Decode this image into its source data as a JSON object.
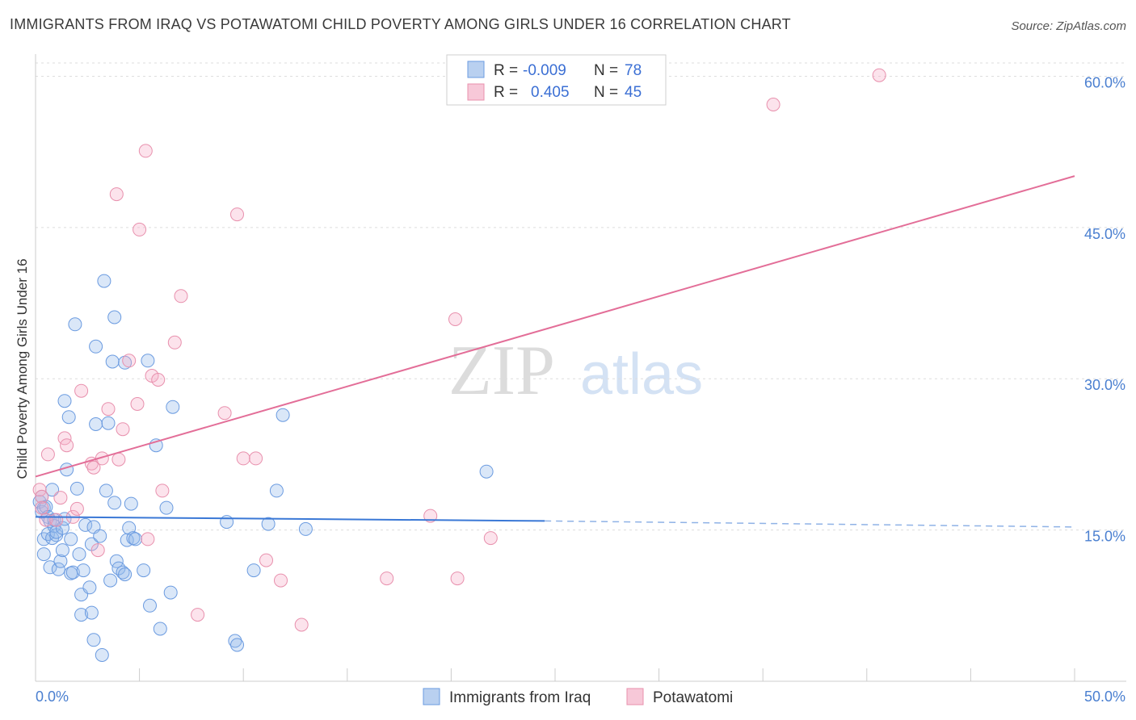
{
  "header": {
    "title": "IMMIGRANTS FROM IRAQ VS POTAWATOMI CHILD POVERTY AMONG GIRLS UNDER 16 CORRELATION CHART",
    "source": "Source: ZipAtlas.com"
  },
  "watermark": {
    "zip": "ZIP",
    "atlas": "atlas"
  },
  "legend_top": {
    "rows": [
      {
        "r_label": "R =",
        "r_value": "-0.009",
        "n_label": "N =",
        "n_value": "78",
        "color": "#6b9be0"
      },
      {
        "r_label": "R =",
        "r_value": "0.405",
        "n_label": "N =",
        "n_value": "45",
        "color": "#e890ad"
      }
    ]
  },
  "legend_bottom": {
    "items": [
      {
        "label": "Immigrants from Iraq",
        "color": "#6b9be0"
      },
      {
        "label": "Potawatomi",
        "color": "#e890ad"
      }
    ]
  },
  "chart_data": {
    "type": "scatter",
    "title": "IMMIGRANTS FROM IRAQ VS POTAWATOMI CHILD POVERTY AMONG GIRLS UNDER 16 CORRELATION CHART",
    "xlabel": "",
    "ylabel": "Child Poverty Among Girls Under 16",
    "xlim": [
      0,
      50
    ],
    "ylim": [
      0,
      63
    ],
    "x_tick_labels": [
      "0.0%",
      "50.0%"
    ],
    "y_ticks": [
      15,
      30,
      45,
      60
    ],
    "y_tick_labels": [
      "15.0%",
      "30.0%",
      "45.0%",
      "60.0%"
    ],
    "grid": true,
    "series": [
      {
        "name": "Immigrants from Iraq",
        "color": "#6b9be0",
        "trend": {
          "x": [
            0,
            24.5
          ],
          "y": [
            16.3,
            15.9
          ],
          "dashed_to": [
            50,
            15.3
          ]
        },
        "points": [
          [
            0.2,
            17.8
          ],
          [
            0.3,
            18.3
          ],
          [
            0.3,
            16.8
          ],
          [
            0.4,
            17.2
          ],
          [
            0.4,
            14.1
          ],
          [
            0.4,
            12.6
          ],
          [
            0.5,
            17.3
          ],
          [
            0.6,
            16.3
          ],
          [
            0.6,
            14.6
          ],
          [
            0.7,
            15.9
          ],
          [
            0.7,
            11.3
          ],
          [
            0.8,
            14.2
          ],
          [
            0.8,
            19.0
          ],
          [
            0.9,
            15.4
          ],
          [
            0.9,
            16.0
          ],
          [
            1.0,
            14.5
          ],
          [
            1.0,
            14.8
          ],
          [
            1.1,
            11.1
          ],
          [
            1.2,
            11.9
          ],
          [
            1.3,
            15.2
          ],
          [
            1.3,
            13.0
          ],
          [
            1.4,
            27.8
          ],
          [
            1.4,
            16.1
          ],
          [
            1.5,
            21.0
          ],
          [
            1.6,
            26.2
          ],
          [
            1.7,
            14.1
          ],
          [
            1.7,
            10.7
          ],
          [
            1.8,
            10.8
          ],
          [
            1.9,
            35.4
          ],
          [
            2.0,
            19.1
          ],
          [
            2.1,
            12.6
          ],
          [
            2.2,
            8.6
          ],
          [
            2.2,
            6.6
          ],
          [
            2.3,
            11.0
          ],
          [
            2.4,
            15.5
          ],
          [
            2.6,
            9.3
          ],
          [
            2.7,
            6.8
          ],
          [
            2.7,
            13.6
          ],
          [
            2.8,
            15.3
          ],
          [
            2.8,
            4.1
          ],
          [
            2.9,
            25.5
          ],
          [
            2.9,
            33.2
          ],
          [
            3.1,
            14.4
          ],
          [
            3.2,
            2.6
          ],
          [
            3.3,
            39.7
          ],
          [
            3.4,
            18.9
          ],
          [
            3.5,
            25.6
          ],
          [
            3.6,
            10.0
          ],
          [
            3.7,
            31.7
          ],
          [
            3.8,
            36.1
          ],
          [
            3.8,
            17.7
          ],
          [
            3.9,
            11.9
          ],
          [
            4.0,
            11.2
          ],
          [
            4.2,
            10.8
          ],
          [
            4.3,
            31.6
          ],
          [
            4.3,
            10.6
          ],
          [
            4.4,
            14.0
          ],
          [
            4.5,
            15.2
          ],
          [
            4.6,
            17.6
          ],
          [
            4.7,
            14.2
          ],
          [
            4.8,
            14.1
          ],
          [
            5.2,
            11.0
          ],
          [
            5.4,
            31.8
          ],
          [
            5.5,
            7.5
          ],
          [
            5.8,
            23.4
          ],
          [
            6.0,
            5.2
          ],
          [
            6.3,
            17.2
          ],
          [
            6.5,
            8.8
          ],
          [
            6.6,
            27.2
          ],
          [
            9.2,
            15.8
          ],
          [
            9.6,
            4.0
          ],
          [
            9.7,
            3.6
          ],
          [
            10.5,
            11.0
          ],
          [
            11.2,
            15.6
          ],
          [
            11.6,
            18.9
          ],
          [
            11.9,
            26.4
          ],
          [
            13.0,
            15.1
          ],
          [
            21.7,
            20.8
          ]
        ]
      },
      {
        "name": "Potawatomi",
        "color": "#e890ad",
        "trend": {
          "x": [
            0,
            50
          ],
          "y": [
            20.3,
            50.1
          ]
        },
        "points": [
          [
            0.2,
            19.0
          ],
          [
            0.3,
            18.3
          ],
          [
            0.3,
            17.2
          ],
          [
            0.5,
            16.0
          ],
          [
            0.6,
            22.5
          ],
          [
            1.0,
            16.0
          ],
          [
            1.2,
            18.2
          ],
          [
            1.4,
            24.1
          ],
          [
            1.5,
            23.4
          ],
          [
            1.8,
            16.3
          ],
          [
            2.0,
            17.1
          ],
          [
            2.2,
            28.8
          ],
          [
            2.7,
            21.6
          ],
          [
            2.8,
            21.2
          ],
          [
            3.0,
            13.0
          ],
          [
            3.2,
            22.1
          ],
          [
            3.5,
            27.0
          ],
          [
            3.9,
            48.3
          ],
          [
            4.0,
            22.0
          ],
          [
            4.2,
            25.0
          ],
          [
            4.5,
            31.8
          ],
          [
            4.9,
            27.5
          ],
          [
            5.0,
            44.8
          ],
          [
            5.3,
            52.6
          ],
          [
            5.4,
            14.1
          ],
          [
            5.6,
            30.3
          ],
          [
            5.9,
            29.9
          ],
          [
            6.1,
            18.9
          ],
          [
            6.7,
            33.6
          ],
          [
            7.0,
            38.2
          ],
          [
            7.8,
            6.6
          ],
          [
            9.1,
            26.6
          ],
          [
            9.7,
            46.3
          ],
          [
            10.0,
            22.1
          ],
          [
            10.6,
            22.1
          ],
          [
            11.1,
            12.0
          ],
          [
            11.8,
            10.0
          ],
          [
            12.8,
            5.6
          ],
          [
            16.9,
            10.2
          ],
          [
            19.0,
            16.4
          ],
          [
            20.2,
            35.9
          ],
          [
            20.3,
            10.2
          ],
          [
            21.9,
            14.2
          ],
          [
            35.5,
            57.2
          ],
          [
            40.6,
            60.1
          ]
        ]
      }
    ]
  }
}
